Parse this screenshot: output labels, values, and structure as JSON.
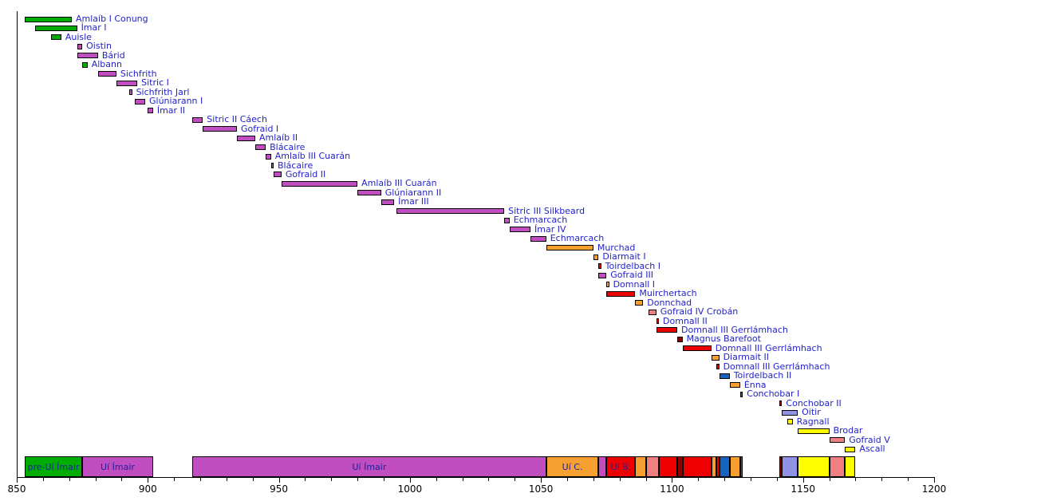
{
  "chart_data": {
    "type": "bar",
    "variant": "gantt_timeline_of_reigns",
    "title": "",
    "xlabel": "",
    "ylabel": "",
    "grid": false,
    "legend_position": "none",
    "x_axis": {
      "min": 850,
      "max": 1200,
      "major_tick_step": 50,
      "minor_tick_step": 10,
      "major_tick_labels": [
        "850",
        "900",
        "950",
        "1000",
        "1050",
        "1100",
        "1150",
        "1200"
      ]
    },
    "colors": {
      "green": "#00AC00",
      "magenta": "#C04EC0",
      "orange": "#F5A030",
      "red": "#EE0000",
      "darkred": "#900000",
      "salmon": "#F08080",
      "blue": "#1565C0",
      "periwinkle": "#9191E5",
      "yellow": "#FFFF00"
    },
    "label_text_color": "#2222CC",
    "band_text_color": "#2020A0",
    "reigns": [
      {
        "name": "Amlaíb I Conung",
        "start": 853,
        "end": 871,
        "color": "green"
      },
      {
        "name": "Ímar I",
        "start": 857,
        "end": 873,
        "color": "green"
      },
      {
        "name": "Auisle",
        "start": 863,
        "end": 867,
        "color": "green"
      },
      {
        "name": "Oistin",
        "start": 873,
        "end": 875,
        "color": "magenta"
      },
      {
        "name": "Bárid",
        "start": 873,
        "end": 881,
        "color": "magenta"
      },
      {
        "name": "Albann",
        "start": 875,
        "end": 877,
        "color": "green"
      },
      {
        "name": "Sichfrith",
        "start": 881,
        "end": 888,
        "color": "magenta"
      },
      {
        "name": "Sitric I",
        "start": 888,
        "end": 896,
        "color": "magenta"
      },
      {
        "name": "Sichfrith Jarl",
        "start": 893,
        "end": 894,
        "color": "magenta"
      },
      {
        "name": "Glúniarann I",
        "start": 895,
        "end": 899,
        "color": "magenta"
      },
      {
        "name": "Ímar II",
        "start": 900,
        "end": 902,
        "color": "magenta"
      },
      {
        "name": "Sitric II Cáech",
        "start": 917,
        "end": 921,
        "color": "magenta"
      },
      {
        "name": "Gofraid I",
        "start": 921,
        "end": 934,
        "color": "magenta"
      },
      {
        "name": "Amlaíb II",
        "start": 934,
        "end": 941,
        "color": "magenta"
      },
      {
        "name": "Blácaire",
        "start": 941,
        "end": 945,
        "color": "magenta"
      },
      {
        "name": "Amlaíb III Cuarán",
        "start": 945,
        "end": 947,
        "color": "magenta"
      },
      {
        "name": "Blácaire",
        "start": 947,
        "end": 948,
        "color": "magenta"
      },
      {
        "name": "Gofraid II",
        "start": 948,
        "end": 951,
        "color": "magenta"
      },
      {
        "name": "Amlaíb III Cuarán",
        "start": 951,
        "end": 980,
        "color": "magenta"
      },
      {
        "name": "Glúniarann II",
        "start": 980,
        "end": 989,
        "color": "magenta"
      },
      {
        "name": "Ímar III",
        "start": 989,
        "end": 994,
        "color": "magenta"
      },
      {
        "name": "Sitric III Silkbeard",
        "start": 995,
        "end": 1036,
        "color": "magenta"
      },
      {
        "name": "Echmarcach",
        "start": 1036,
        "end": 1038,
        "color": "magenta"
      },
      {
        "name": "Ímar IV",
        "start": 1038,
        "end": 1046,
        "color": "magenta"
      },
      {
        "name": "Echmarcach",
        "start": 1046,
        "end": 1052,
        "color": "magenta"
      },
      {
        "name": "Murchad",
        "start": 1052,
        "end": 1070,
        "color": "orange"
      },
      {
        "name": "Diarmait I",
        "start": 1070,
        "end": 1072,
        "color": "orange"
      },
      {
        "name": "Toirdelbach I",
        "start": 1072,
        "end": 1073,
        "color": "red"
      },
      {
        "name": "Gofraid III",
        "start": 1072,
        "end": 1075,
        "color": "magenta"
      },
      {
        "name": "Domnall I",
        "start": 1075,
        "end": 1076,
        "color": "orange"
      },
      {
        "name": "Muirchertach",
        "start": 1075,
        "end": 1086,
        "color": "red"
      },
      {
        "name": "Donnchad",
        "start": 1086,
        "end": 1089,
        "color": "orange"
      },
      {
        "name": "Gofraid IV Crobán",
        "start": 1091,
        "end": 1094,
        "color": "salmon"
      },
      {
        "name": "Domnall II",
        "start": 1094,
        "end": 1095,
        "color": "red"
      },
      {
        "name": "Domnall III Gerrlámhach",
        "start": 1094,
        "end": 1102,
        "color": "red"
      },
      {
        "name": "Magnus Barefoot",
        "start": 1102,
        "end": 1104,
        "color": "darkred"
      },
      {
        "name": "Domnall III Gerrlámhach",
        "start": 1104,
        "end": 1115,
        "color": "red"
      },
      {
        "name": "Diarmait II",
        "start": 1115,
        "end": 1118,
        "color": "orange"
      },
      {
        "name": "Domnall III Gerrlámhach",
        "start": 1117,
        "end": 1118,
        "color": "red"
      },
      {
        "name": "Toirdelbach II",
        "start": 1118,
        "end": 1122,
        "color": "blue"
      },
      {
        "name": "Énna",
        "start": 1122,
        "end": 1126,
        "color": "orange"
      },
      {
        "name": "Conchobar I",
        "start": 1126,
        "end": 1127,
        "color": "blue"
      },
      {
        "name": "Conchobar II",
        "start": 1141,
        "end": 1142,
        "color": "darkred"
      },
      {
        "name": "Oitir",
        "start": 1142,
        "end": 1148,
        "color": "periwinkle"
      },
      {
        "name": "Ragnall",
        "start": 1144,
        "end": 1146,
        "color": "yellow"
      },
      {
        "name": "Brodar",
        "start": 1148,
        "end": 1160,
        "color": "yellow"
      },
      {
        "name": "Gofraid V",
        "start": 1160,
        "end": 1166,
        "color": "salmon"
      },
      {
        "name": "Ascall",
        "start": 1166,
        "end": 1170,
        "color": "yellow"
      }
    ],
    "dynasty_band": [
      {
        "start": 853,
        "end": 875,
        "color": "green",
        "label": "pre-Uí Ímair"
      },
      {
        "start": 875,
        "end": 902,
        "color": "magenta",
        "label": "Uí Ímair"
      },
      {
        "start": 917,
        "end": 1052,
        "color": "magenta",
        "label": "Uí Ímair"
      },
      {
        "start": 1052,
        "end": 1072,
        "color": "orange",
        "label": "Uí C."
      },
      {
        "start": 1072,
        "end": 1075,
        "color": "magenta",
        "label": ""
      },
      {
        "start": 1075,
        "end": 1086,
        "color": "red",
        "label": "Uí B."
      },
      {
        "start": 1086,
        "end": 1090,
        "color": "orange",
        "label": ""
      },
      {
        "start": 1090,
        "end": 1095,
        "color": "salmon",
        "label": ""
      },
      {
        "start": 1095,
        "end": 1102,
        "color": "red",
        "label": ""
      },
      {
        "start": 1102,
        "end": 1104,
        "color": "darkred",
        "label": ""
      },
      {
        "start": 1104,
        "end": 1115,
        "color": "red",
        "label": ""
      },
      {
        "start": 1115,
        "end": 1117,
        "color": "orange",
        "label": ""
      },
      {
        "start": 1117,
        "end": 1118,
        "color": "red",
        "label": ""
      },
      {
        "start": 1118,
        "end": 1122,
        "color": "blue",
        "label": ""
      },
      {
        "start": 1122,
        "end": 1126,
        "color": "orange",
        "label": ""
      },
      {
        "start": 1126,
        "end": 1127,
        "color": "blue",
        "label": ""
      },
      {
        "start": 1141,
        "end": 1142,
        "color": "darkred",
        "label": ""
      },
      {
        "start": 1142,
        "end": 1148,
        "color": "periwinkle",
        "label": ""
      },
      {
        "start": 1148,
        "end": 1160,
        "color": "yellow",
        "label": ""
      },
      {
        "start": 1160,
        "end": 1166,
        "color": "salmon",
        "label": ""
      },
      {
        "start": 1166,
        "end": 1170,
        "color": "yellow",
        "label": ""
      }
    ]
  }
}
